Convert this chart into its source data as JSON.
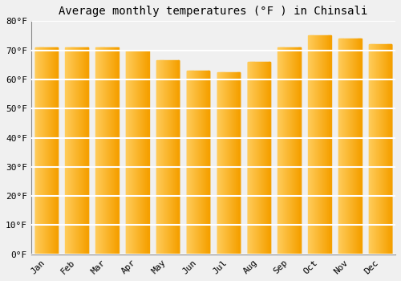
{
  "title": "Average monthly temperatures (°F ) in Chinsali",
  "categories": [
    "Jan",
    "Feb",
    "Mar",
    "Apr",
    "May",
    "Jun",
    "Jul",
    "Aug",
    "Sep",
    "Oct",
    "Nov",
    "Dec"
  ],
  "values": [
    71,
    71,
    71,
    70,
    66.5,
    63,
    62.5,
    66,
    71,
    75,
    74,
    72
  ],
  "bar_color_left": "#FFCD5E",
  "bar_color_right": "#F5A000",
  "ylim": [
    0,
    80
  ],
  "yticks": [
    0,
    10,
    20,
    30,
    40,
    50,
    60,
    70,
    80
  ],
  "ytick_labels": [
    "0°F",
    "10°F",
    "20°F",
    "30°F",
    "40°F",
    "50°F",
    "60°F",
    "70°F",
    "80°F"
  ],
  "background_color": "#f0f0f0",
  "plot_bg_color": "#f0f0f0",
  "grid_color": "#ffffff",
  "title_fontsize": 10,
  "tick_fontsize": 8,
  "bar_width": 0.75
}
